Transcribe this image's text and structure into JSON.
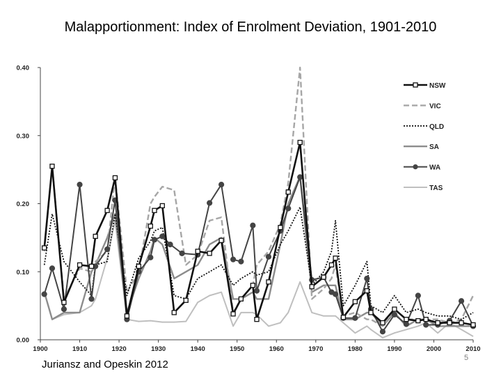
{
  "slide": {
    "title": "Malapportionment: Index of Enrolment Deviation, 1901-2010",
    "source": "Juriansz and Opeskin 2012",
    "page_number": "5"
  },
  "chart_data": {
    "type": "line",
    "title": "Malapportionment: Index of Enrolment Deviation, 1901-2010",
    "xlabel": "",
    "ylabel": "",
    "xlim": [
      1900,
      2010
    ],
    "ylim": [
      0,
      0.4
    ],
    "x_ticks": [
      1900,
      1910,
      1920,
      1930,
      1940,
      1950,
      1960,
      1970,
      1980,
      1990,
      2000,
      2010
    ],
    "x_tick_labels": [
      "1900",
      "1910",
      "1920",
      "1930",
      "1940",
      "1950",
      "1960",
      "1970",
      "1980",
      "1990",
      "2000",
      "2010"
    ],
    "y_ticks": [
      0,
      0.1,
      0.2,
      0.3,
      0.4
    ],
    "y_tick_labels": [
      "0.00",
      "0.10",
      "0.20",
      "0.30",
      "0.40"
    ],
    "grid": false,
    "legend_position": "upper-right",
    "series": [
      {
        "name": "NSW",
        "color": "#111111",
        "dash": "",
        "width": 2.6,
        "marker": "square",
        "points": [
          [
            1901,
            0.135
          ],
          [
            1903,
            0.255
          ],
          [
            1906,
            0.055
          ],
          [
            1910,
            0.11
          ],
          [
            1913,
            0.108
          ],
          [
            1914,
            0.152
          ],
          [
            1917,
            0.19
          ],
          [
            1919,
            0.238
          ],
          [
            1922,
            0.035
          ],
          [
            1925,
            0.108
          ],
          [
            1928,
            0.167
          ],
          [
            1929,
            0.19
          ],
          [
            1931,
            0.197
          ],
          [
            1934,
            0.04
          ],
          [
            1937,
            0.058
          ],
          [
            1940,
            0.13
          ],
          [
            1943,
            0.127
          ],
          [
            1946,
            0.146
          ],
          [
            1949,
            0.038
          ],
          [
            1951,
            0.06
          ],
          [
            1954,
            0.08
          ],
          [
            1955,
            0.03
          ],
          [
            1958,
            0.085
          ],
          [
            1961,
            0.165
          ],
          [
            1963,
            0.217
          ],
          [
            1966,
            0.29
          ],
          [
            1969,
            0.078
          ],
          [
            1972,
            0.092
          ],
          [
            1974,
            0.11
          ],
          [
            1975,
            0.12
          ],
          [
            1977,
            0.033
          ],
          [
            1980,
            0.056
          ],
          [
            1983,
            0.072
          ],
          [
            1984,
            0.04
          ],
          [
            1987,
            0.025
          ],
          [
            1990,
            0.045
          ],
          [
            1993,
            0.03
          ],
          [
            1996,
            0.028
          ],
          [
            1998,
            0.03
          ],
          [
            2001,
            0.025
          ],
          [
            2004,
            0.025
          ],
          [
            2007,
            0.025
          ],
          [
            2010,
            0.022
          ]
        ]
      },
      {
        "name": "VIC",
        "color": "#a6a6a6",
        "dash": "8,4",
        "width": 2.4,
        "marker": "none",
        "points": [
          [
            1901,
            0.13
          ],
          [
            1903,
            0.255
          ],
          [
            1906,
            0.06
          ],
          [
            1910,
            0.105
          ],
          [
            1913,
            0.1
          ],
          [
            1914,
            0.115
          ],
          [
            1917,
            0.13
          ],
          [
            1919,
            0.24
          ],
          [
            1922,
            0.07
          ],
          [
            1925,
            0.1
          ],
          [
            1928,
            0.2
          ],
          [
            1929,
            0.21
          ],
          [
            1931,
            0.225
          ],
          [
            1934,
            0.22
          ],
          [
            1937,
            0.11
          ],
          [
            1940,
            0.125
          ],
          [
            1943,
            0.175
          ],
          [
            1946,
            0.18
          ],
          [
            1949,
            0.04
          ],
          [
            1951,
            0.06
          ],
          [
            1954,
            0.08
          ],
          [
            1955,
            0.11
          ],
          [
            1958,
            0.13
          ],
          [
            1961,
            0.17
          ],
          [
            1963,
            0.23
          ],
          [
            1966,
            0.4
          ],
          [
            1969,
            0.06
          ],
          [
            1972,
            0.075
          ],
          [
            1974,
            0.09
          ],
          [
            1975,
            0.11
          ],
          [
            1977,
            0.035
          ],
          [
            1980,
            0.04
          ],
          [
            1983,
            0.03
          ],
          [
            1984,
            0.03
          ],
          [
            1987,
            0.02
          ],
          [
            1990,
            0.045
          ],
          [
            1993,
            0.03
          ],
          [
            1996,
            0.03
          ],
          [
            1998,
            0.03
          ],
          [
            2001,
            0.03
          ],
          [
            2004,
            0.025
          ],
          [
            2007,
            0.03
          ],
          [
            2010,
            0.065
          ]
        ]
      },
      {
        "name": "QLD",
        "color": "#111111",
        "dash": "2,2",
        "width": 1.8,
        "marker": "none",
        "points": [
          [
            1901,
            0.11
          ],
          [
            1903,
            0.185
          ],
          [
            1906,
            0.115
          ],
          [
            1910,
            0.085
          ],
          [
            1913,
            0.065
          ],
          [
            1914,
            0.11
          ],
          [
            1917,
            0.115
          ],
          [
            1919,
            0.185
          ],
          [
            1922,
            0.065
          ],
          [
            1925,
            0.12
          ],
          [
            1928,
            0.145
          ],
          [
            1929,
            0.16
          ],
          [
            1931,
            0.165
          ],
          [
            1934,
            0.065
          ],
          [
            1937,
            0.06
          ],
          [
            1940,
            0.09
          ],
          [
            1943,
            0.1
          ],
          [
            1946,
            0.11
          ],
          [
            1949,
            0.08
          ],
          [
            1951,
            0.09
          ],
          [
            1954,
            0.1
          ],
          [
            1955,
            0.095
          ],
          [
            1958,
            0.1
          ],
          [
            1961,
            0.14
          ],
          [
            1963,
            0.16
          ],
          [
            1966,
            0.195
          ],
          [
            1969,
            0.08
          ],
          [
            1972,
            0.1
          ],
          [
            1974,
            0.13
          ],
          [
            1975,
            0.175
          ],
          [
            1977,
            0.05
          ],
          [
            1980,
            0.08
          ],
          [
            1983,
            0.115
          ],
          [
            1984,
            0.05
          ],
          [
            1987,
            0.04
          ],
          [
            1990,
            0.065
          ],
          [
            1993,
            0.04
          ],
          [
            1996,
            0.045
          ],
          [
            1998,
            0.04
          ],
          [
            2001,
            0.035
          ],
          [
            2004,
            0.035
          ],
          [
            2007,
            0.03
          ],
          [
            2010,
            0.04
          ]
        ]
      },
      {
        "name": "SA",
        "color": "#8c8c8c",
        "dash": "",
        "width": 2.4,
        "marker": "none",
        "points": [
          [
            1901,
            0.07
          ],
          [
            1903,
            0.03
          ],
          [
            1906,
            0.04
          ],
          [
            1910,
            0.04
          ],
          [
            1913,
            0.1
          ],
          [
            1914,
            0.11
          ],
          [
            1917,
            0.15
          ],
          [
            1919,
            0.185
          ],
          [
            1922,
            0.04
          ],
          [
            1925,
            0.09
          ],
          [
            1928,
            0.13
          ],
          [
            1929,
            0.15
          ],
          [
            1931,
            0.14
          ],
          [
            1934,
            0.09
          ],
          [
            1937,
            0.1
          ],
          [
            1940,
            0.11
          ],
          [
            1943,
            0.14
          ],
          [
            1946,
            0.15
          ],
          [
            1949,
            0.06
          ],
          [
            1951,
            0.06
          ],
          [
            1954,
            0.07
          ],
          [
            1955,
            0.06
          ],
          [
            1958,
            0.06
          ],
          [
            1961,
            0.14
          ],
          [
            1963,
            0.2
          ],
          [
            1966,
            0.24
          ],
          [
            1969,
            0.07
          ],
          [
            1972,
            0.08
          ],
          [
            1974,
            0.08
          ],
          [
            1975,
            0.08
          ],
          [
            1977,
            0.03
          ],
          [
            1980,
            0.03
          ],
          [
            1983,
            0.04
          ],
          [
            1984,
            0.04
          ],
          [
            1987,
            0.02
          ],
          [
            1990,
            0.04
          ],
          [
            1993,
            0.02
          ],
          [
            1996,
            0.03
          ],
          [
            1998,
            0.03
          ],
          [
            2001,
            0.02
          ],
          [
            2004,
            0.02
          ],
          [
            2007,
            0.02
          ],
          [
            2010,
            0.02
          ]
        ]
      },
      {
        "name": "WA",
        "color": "#444444",
        "dash": "",
        "width": 2.0,
        "marker": "circle",
        "points": [
          [
            1901,
            0.067
          ],
          [
            1903,
            0.105
          ],
          [
            1906,
            0.045
          ],
          [
            1910,
            0.228
          ],
          [
            1913,
            0.06
          ],
          [
            1914,
            0.108
          ],
          [
            1917,
            0.133
          ],
          [
            1919,
            0.205
          ],
          [
            1922,
            0.03
          ],
          [
            1925,
            0.1
          ],
          [
            1928,
            0.121
          ],
          [
            1929,
            0.147
          ],
          [
            1931,
            0.152
          ],
          [
            1933,
            0.14
          ],
          [
            1936,
            0.127
          ],
          [
            1940,
            0.125
          ],
          [
            1943,
            0.201
          ],
          [
            1946,
            0.228
          ],
          [
            1949,
            0.118
          ],
          [
            1951,
            0.115
          ],
          [
            1954,
            0.168
          ],
          [
            1955,
            0.072
          ],
          [
            1958,
            0.122
          ],
          [
            1961,
            0.16
          ],
          [
            1963,
            0.193
          ],
          [
            1966,
            0.239
          ],
          [
            1969,
            0.088
          ],
          [
            1972,
            0.092
          ],
          [
            1974,
            0.07
          ],
          [
            1975,
            0.067
          ],
          [
            1977,
            0.032
          ],
          [
            1980,
            0.032
          ],
          [
            1983,
            0.09
          ],
          [
            1984,
            0.045
          ],
          [
            1987,
            0.012
          ],
          [
            1990,
            0.037
          ],
          [
            1993,
            0.023
          ],
          [
            1996,
            0.065
          ],
          [
            1998,
            0.022
          ],
          [
            2001,
            0.022
          ],
          [
            2004,
            0.028
          ],
          [
            2007,
            0.057
          ],
          [
            2010,
            0.02
          ]
        ]
      },
      {
        "name": "TAS",
        "color": "#bfbfbf",
        "dash": "",
        "width": 2.0,
        "marker": "none",
        "points": [
          [
            1903,
            0.03
          ],
          [
            1906,
            0.037
          ],
          [
            1910,
            0.04
          ],
          [
            1913,
            0.05
          ],
          [
            1914,
            0.06
          ],
          [
            1917,
            0.12
          ],
          [
            1919,
            0.175
          ],
          [
            1922,
            0.03
          ],
          [
            1925,
            0.027
          ],
          [
            1928,
            0.028
          ],
          [
            1931,
            0.026
          ],
          [
            1934,
            0.026
          ],
          [
            1937,
            0.027
          ],
          [
            1940,
            0.055
          ],
          [
            1943,
            0.065
          ],
          [
            1946,
            0.07
          ],
          [
            1949,
            0.02
          ],
          [
            1951,
            0.04
          ],
          [
            1954,
            0.04
          ],
          [
            1955,
            0.037
          ],
          [
            1958,
            0.02
          ],
          [
            1961,
            0.025
          ],
          [
            1963,
            0.04
          ],
          [
            1966,
            0.085
          ],
          [
            1969,
            0.04
          ],
          [
            1972,
            0.035
          ],
          [
            1974,
            0.035
          ],
          [
            1975,
            0.035
          ],
          [
            1977,
            0.025
          ],
          [
            1980,
            0.01
          ],
          [
            1983,
            0.02
          ],
          [
            1984,
            0.015
          ],
          [
            1987,
            0.003
          ],
          [
            1990,
            0.01
          ],
          [
            1993,
            0.015
          ],
          [
            1996,
            0.02
          ],
          [
            1998,
            0.025
          ],
          [
            2001,
            0.01
          ],
          [
            2004,
            0.025
          ],
          [
            2007,
            0.015
          ],
          [
            2010,
            0.005
          ]
        ]
      }
    ]
  }
}
